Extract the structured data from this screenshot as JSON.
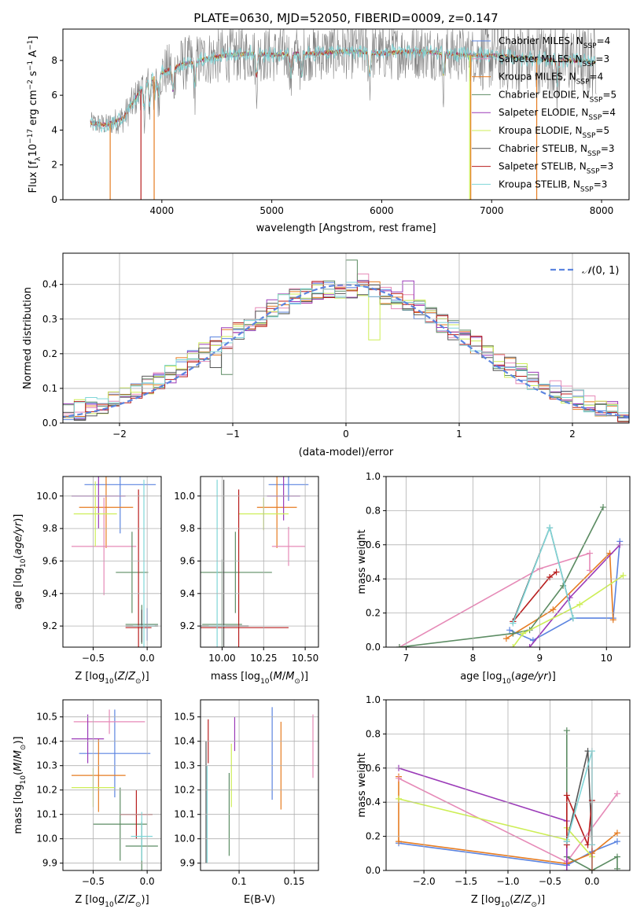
{
  "colors": {
    "c1": "#5b84e0",
    "c2": "#e67c21",
    "c3": "#e68ab7",
    "c4": "#5c8c63",
    "c5": "#9b3bb8",
    "c6": "#cdee56",
    "c7": "#555555",
    "c8": "#b81e1e",
    "c9": "#7fd6d8",
    "grey": "#808080",
    "gauss": "#5b84e0",
    "grid": "#b0b0b0"
  },
  "chart_data": [
    {
      "type": "line",
      "title": "PLATE=0630, MJD=52050, FIBERID=0009, z=0.147",
      "xlabel": "wavelength [Angstrom, rest frame]",
      "ylabel": "Flux [f_λ 10^-17 erg cm^-2 s^-1 A^-1]",
      "xlim": [
        3100,
        8250
      ],
      "ylim": [
        0,
        9.8
      ],
      "xticks": [
        4000,
        5000,
        6000,
        7000,
        8000
      ],
      "yticks": [
        0,
        2,
        4,
        6,
        8
      ],
      "grid": false,
      "legend_position": "top-right",
      "legend": [
        {
          "prefix": "Chabrier MILES, N",
          "sub": "SSP",
          "suffix": "=4",
          "color": "c1"
        },
        {
          "prefix": "Salpeter MILES, N",
          "sub": "SSP",
          "suffix": "=3",
          "color": "c3"
        },
        {
          "prefix": "Kroupa MILES, N",
          "sub": "SSP",
          "suffix": "=4",
          "color": "c2"
        },
        {
          "prefix": "Chabrier ELODIE, N",
          "sub": "SSP",
          "suffix": "=5",
          "color": "c4"
        },
        {
          "prefix": "Salpeter ELODIE, N",
          "sub": "SSP",
          "suffix": "=4",
          "color": "c5"
        },
        {
          "prefix": "Kroupa ELODIE, N",
          "sub": "SSP",
          "suffix": "=5",
          "color": "c6"
        },
        {
          "prefix": "Chabrier STELIB, N",
          "sub": "SSP",
          "suffix": "=3",
          "color": "c7"
        },
        {
          "prefix": "Salpeter STELIB, N",
          "sub": "SSP",
          "suffix": "=3",
          "color": "c8"
        },
        {
          "prefix": "Kroupa STELIB, N",
          "sub": "SSP",
          "suffix": "=3",
          "color": "c9"
        }
      ],
      "continuum": {
        "x": [
          3350,
          3500,
          3650,
          3800,
          3900,
          4000,
          4200,
          4400,
          4600,
          4800,
          5000,
          5200,
          5400,
          5600,
          5800,
          6000,
          6200,
          6400,
          6600,
          6800,
          7000,
          7200,
          7400,
          7600,
          7800,
          7900
        ],
        "y": [
          4.4,
          4.3,
          4.7,
          6.2,
          7.0,
          7.3,
          7.8,
          8.1,
          8.3,
          8.4,
          8.3,
          8.4,
          8.4,
          8.5,
          8.5,
          8.4,
          8.5,
          8.5,
          8.4,
          8.3,
          8.3,
          8.2,
          8.1,
          8.0,
          8.0,
          7.9
        ]
      },
      "drops": [
        {
          "x": 3530,
          "color": "c2"
        },
        {
          "x": 3810,
          "color": "c8"
        },
        {
          "x": 3930,
          "color": "c2"
        },
        {
          "x": 6800,
          "color": "c6"
        },
        {
          "x": 6810,
          "color": "c2"
        },
        {
          "x": 7410,
          "color": "c2"
        }
      ],
      "absorption_x": [
        3840,
        3890,
        3935,
        3970,
        4102,
        4300,
        4861,
        5175,
        5270,
        5890,
        6563,
        7600
      ]
    },
    {
      "type": "histogram",
      "xlabel": "(data-model)/error",
      "ylabel": "Normed distribution",
      "xlim": [
        -2.5,
        2.5
      ],
      "ylim": [
        0,
        0.49
      ],
      "xticks": [
        -2,
        -1,
        0,
        1,
        2
      ],
      "yticks": [
        0.0,
        0.1,
        0.2,
        0.3,
        0.4
      ],
      "grid": true,
      "bin_width": 0.1,
      "gaussian": {
        "mean": 0,
        "sigma": 1,
        "label": "𝒩(0, 1)",
        "legend_position": "top-right"
      },
      "series_colors": [
        "c1",
        "c2",
        "c3",
        "c4",
        "c5",
        "c6",
        "c7",
        "c8",
        "c9"
      ],
      "extra_peaks": [
        {
          "series": 3,
          "x": 0.05,
          "y": 0.47
        },
        {
          "series": 3,
          "x": -0.15,
          "y": 0.41
        },
        {
          "series": 2,
          "x": 0.15,
          "y": 0.43
        },
        {
          "series": 4,
          "x": 0.55,
          "y": 0.41
        },
        {
          "series": 5,
          "x": 0.25,
          "y": 0.24
        },
        {
          "series": 3,
          "x": -1.05,
          "y": 0.14
        },
        {
          "series": 6,
          "x": -1.15,
          "y": 0.16
        }
      ]
    },
    {
      "type": "errorbar",
      "xlabel": "Z [log10(Z/Z⊙)]",
      "ylabel": "age  [log10(age/yr)]",
      "xlim": [
        -0.78,
        0.13
      ],
      "ylim": [
        9.07,
        10.12
      ],
      "xticks": [
        -0.5,
        0.0
      ],
      "yticks": [
        9.2,
        9.4,
        9.6,
        9.8,
        10.0
      ],
      "points": [
        {
          "c": "c1",
          "x": -0.25,
          "y": 10.07,
          "xe": 0.33,
          "ye": 0.3
        },
        {
          "c": "c1",
          "x": -0.0,
          "y": 9.21,
          "xe": 0.1,
          "ye": 0.1
        },
        {
          "c": "c2",
          "x": -0.38,
          "y": 9.93,
          "xe": 0.25,
          "ye": 0.25
        },
        {
          "c": "c3",
          "x": -0.4,
          "y": 9.69,
          "xe": 0.3,
          "ye": 0.3
        },
        {
          "c": "c4",
          "x": -0.14,
          "y": 9.53,
          "xe": 0.15,
          "ye": 0.25
        },
        {
          "c": "c4",
          "x": -0.05,
          "y": 9.21,
          "xe": 0.15,
          "ye": 0.12
        },
        {
          "c": "c5",
          "x": -0.45,
          "y": 10.0,
          "xe": 0.25,
          "ye": 0.2
        },
        {
          "c": "c6",
          "x": -0.48,
          "y": 9.89,
          "xe": 0.2,
          "ye": 0.2
        },
        {
          "c": "c7",
          "x": -0.05,
          "y": 9.2,
          "xe": 0.15,
          "ye": 0.1
        },
        {
          "c": "c8",
          "x": -0.08,
          "y": 9.19,
          "xe": 0.12,
          "ye": 0.85
        },
        {
          "c": "c9",
          "x": -0.03,
          "y": 9.2,
          "xe": 0.1,
          "ye": 0.9
        }
      ]
    },
    {
      "type": "errorbar",
      "xlabel": "mass [log10(M/M⊙)]",
      "ylabel": "",
      "xlim": [
        9.87,
        10.58
      ],
      "ylim": [
        9.07,
        10.12
      ],
      "xticks": [
        10.0,
        10.25,
        10.5
      ],
      "yticks": [
        9.2,
        9.4,
        9.6,
        9.8,
        10.0
      ],
      "points": [
        {
          "c": "c1",
          "x": 10.4,
          "y": 10.07,
          "xe": 0.12,
          "ye": 0.1
        },
        {
          "c": "c2",
          "x": 10.33,
          "y": 9.93,
          "xe": 0.12,
          "ye": 0.25
        },
        {
          "c": "c3",
          "x": 10.4,
          "y": 9.69,
          "xe": 0.1,
          "ye": 0.12
        },
        {
          "c": "c4",
          "x": 10.08,
          "y": 9.53,
          "xe": 0.22,
          "ye": 0.25
        },
        {
          "c": "c4",
          "x": 10.0,
          "y": 9.21,
          "xe": 0.12,
          "ye": 0.4
        },
        {
          "c": "c5",
          "x": 10.37,
          "y": 10.0,
          "xe": 0.1,
          "ye": 0.15
        },
        {
          "c": "c6",
          "x": 10.25,
          "y": 9.89,
          "xe": 0.15,
          "ye": 0.1
        },
        {
          "c": "c7",
          "x": 10.01,
          "y": 9.2,
          "xe": 0.15,
          "ye": 0.9
        },
        {
          "c": "c8",
          "x": 10.1,
          "y": 9.19,
          "xe": 0.3,
          "ye": 0.85
        },
        {
          "c": "c9",
          "x": 9.97,
          "y": 9.2,
          "xe": 0.05,
          "ye": 0.9
        }
      ]
    },
    {
      "type": "line",
      "xlabel": "age  [log10(age/yr)]",
      "ylabel": "mass weight",
      "xlim": [
        6.7,
        10.35
      ],
      "ylim": [
        0,
        1.0
      ],
      "xticks": [
        7,
        8,
        9,
        10
      ],
      "yticks": [
        0.0,
        0.2,
        0.4,
        0.6,
        0.8,
        1.0
      ],
      "grid": true,
      "series": [
        {
          "c": "c1",
          "x": [
            8.55,
            8.9,
            9.5,
            10.1,
            10.2
          ],
          "y": [
            0.1,
            0.04,
            0.17,
            0.17,
            0.62
          ]
        },
        {
          "c": "c2",
          "x": [
            8.5,
            9.2,
            10.05,
            10.1
          ],
          "y": [
            0.05,
            0.22,
            0.55,
            0.16
          ]
        },
        {
          "c": "c3",
          "x": [
            6.9,
            9.0,
            9.75,
            9.75
          ],
          "y": [
            0.0,
            0.46,
            0.55,
            0.45
          ]
        },
        {
          "c": "c4",
          "x": [
            6.9,
            8.6,
            8.85,
            9.35,
            9.95
          ],
          "y": [
            0.0,
            0.08,
            0.1,
            0.36,
            0.82
          ]
        },
        {
          "c": "c5",
          "x": [
            8.85,
            9.45,
            10.2
          ],
          "y": [
            0.0,
            0.29,
            0.6
          ]
        },
        {
          "c": "c6",
          "x": [
            8.6,
            8.75,
            9.6,
            10.25
          ],
          "y": [
            0.0,
            0.08,
            0.25,
            0.42
          ]
        },
        {
          "c": "c7",
          "x": [
            8.6,
            9.15,
            9.5
          ],
          "y": [
            0.15,
            0.7,
            0.17
          ]
        },
        {
          "c": "c8",
          "x": [
            8.6,
            9.15,
            9.25
          ],
          "y": [
            0.15,
            0.41,
            0.44
          ]
        },
        {
          "c": "c9",
          "x": [
            8.6,
            9.15,
            9.5
          ],
          "y": [
            0.14,
            0.7,
            0.17
          ]
        }
      ]
    },
    {
      "type": "errorbar",
      "xlabel": "Z [log10(Z/Z⊙)]",
      "ylabel": "mass [log10(M/M⊙)]",
      "xlim": [
        -0.78,
        0.13
      ],
      "ylim": [
        9.87,
        10.57
      ],
      "xticks": [
        -0.5,
        0.0
      ],
      "yticks": [
        9.9,
        10.0,
        10.1,
        10.2,
        10.3,
        10.4,
        10.5
      ],
      "points": [
        {
          "c": "c1",
          "x": -0.3,
          "y": 10.35,
          "xe": 0.33,
          "ye": 0.18
        },
        {
          "c": "c2",
          "x": -0.45,
          "y": 10.26,
          "xe": 0.25,
          "ye": 0.15
        },
        {
          "c": "c3",
          "x": -0.35,
          "y": 10.48,
          "xe": 0.33,
          "ye": 0.05
        },
        {
          "c": "c4",
          "x": -0.25,
          "y": 10.06,
          "xe": 0.25,
          "ye": 0.15
        },
        {
          "c": "c4",
          "x": -0.05,
          "y": 9.97,
          "xe": 0.15,
          "ye": 0.1
        },
        {
          "c": "c5",
          "x": -0.55,
          "y": 10.41,
          "xe": 0.15,
          "ye": 0.1
        },
        {
          "c": "c6",
          "x": -0.5,
          "y": 10.21,
          "xe": 0.2,
          "ye": 0.08
        },
        {
          "c": "c8",
          "x": -0.1,
          "y": 10.1,
          "xe": 0.15,
          "ye": 0.1
        },
        {
          "c": "c9",
          "x": -0.05,
          "y": 10.01,
          "xe": 0.1,
          "ye": 0.1
        }
      ]
    },
    {
      "type": "errorbar",
      "xlabel": "E(B-V)",
      "ylabel": "",
      "xlim": [
        0.065,
        0.172
      ],
      "ylim": [
        9.87,
        10.57
      ],
      "xticks": [
        0.1,
        0.15
      ],
      "yticks": [
        9.9,
        10.0,
        10.1,
        10.2,
        10.3,
        10.4,
        10.5
      ],
      "points": [
        {
          "c": "c1",
          "x": 0.13,
          "y": 10.35,
          "xe": 0,
          "ye": 0.19
        },
        {
          "c": "c2",
          "x": 0.138,
          "y": 10.3,
          "xe": 0,
          "ye": 0.18
        },
        {
          "c": "c3",
          "x": 0.167,
          "y": 10.38,
          "xe": 0,
          "ye": 0.13
        },
        {
          "c": "c4",
          "x": 0.091,
          "y": 10.1,
          "xe": 0,
          "ye": 0.17
        },
        {
          "c": "c5",
          "x": 0.096,
          "y": 10.43,
          "xe": 0,
          "ye": 0.07
        },
        {
          "c": "c6",
          "x": 0.093,
          "y": 10.26,
          "xe": 0,
          "ye": 0.13
        },
        {
          "c": "c7",
          "x": 0.07,
          "y": 10.15,
          "xe": 0,
          "ye": 0.25
        },
        {
          "c": "c8",
          "x": 0.072,
          "y": 10.4,
          "xe": 0,
          "ye": 0.09
        },
        {
          "c": "c9",
          "x": 0.071,
          "y": 10.1,
          "xe": 0,
          "ye": 0.2
        }
      ]
    },
    {
      "type": "line",
      "xlabel": "Z [log10(Z/Z⊙)]",
      "ylabel": "mass weight",
      "xlim": [
        -2.45,
        0.45
      ],
      "ylim": [
        0,
        1.0
      ],
      "xticks": [
        -2.0,
        -1.5,
        -1.0,
        -0.5,
        0.0
      ],
      "yticks": [
        0.0,
        0.2,
        0.4,
        0.6,
        0.8,
        1.0
      ],
      "grid": true,
      "series": [
        {
          "c": "c1",
          "x": [
            -2.3,
            -0.3,
            0.0,
            0.3
          ],
          "y": [
            0.16,
            0.03,
            0.11,
            0.17
          ]
        },
        {
          "c": "c2",
          "x": [
            -2.3,
            -2.3,
            -0.3,
            0.0,
            0.3
          ],
          "y": [
            0.55,
            0.17,
            0.04,
            0.1,
            0.22
          ]
        },
        {
          "c": "c3",
          "x": [
            -2.3,
            -0.3,
            0.3
          ],
          "y": [
            0.54,
            0.05,
            0.45
          ]
        },
        {
          "c": "c4",
          "x": [
            -0.3,
            -0.3,
            0.0,
            0.3,
            0.3
          ],
          "y": [
            0.82,
            0.08,
            0.0,
            0.08,
            0.01
          ]
        },
        {
          "c": "c5",
          "x": [
            -2.3,
            -0.3,
            -0.3
          ],
          "y": [
            0.6,
            0.29,
            0.0
          ]
        },
        {
          "c": "c6",
          "x": [
            -2.3,
            -0.3,
            -0.3,
            0.0,
            0.0
          ],
          "y": [
            0.42,
            0.18,
            0.25,
            0.08,
            0.0
          ]
        },
        {
          "c": "c7",
          "x": [
            -0.3,
            -0.05,
            0.0
          ],
          "y": [
            0.17,
            0.7,
            0.15
          ]
        },
        {
          "c": "c8",
          "x": [
            -0.3,
            -0.3,
            -0.05,
            0.0,
            0.0
          ],
          "y": [
            0.15,
            0.44,
            0.15,
            0.41,
            0.0
          ]
        },
        {
          "c": "c9",
          "x": [
            -0.3,
            0.0,
            0.0
          ],
          "y": [
            0.17,
            0.7,
            0.15
          ]
        }
      ]
    }
  ]
}
